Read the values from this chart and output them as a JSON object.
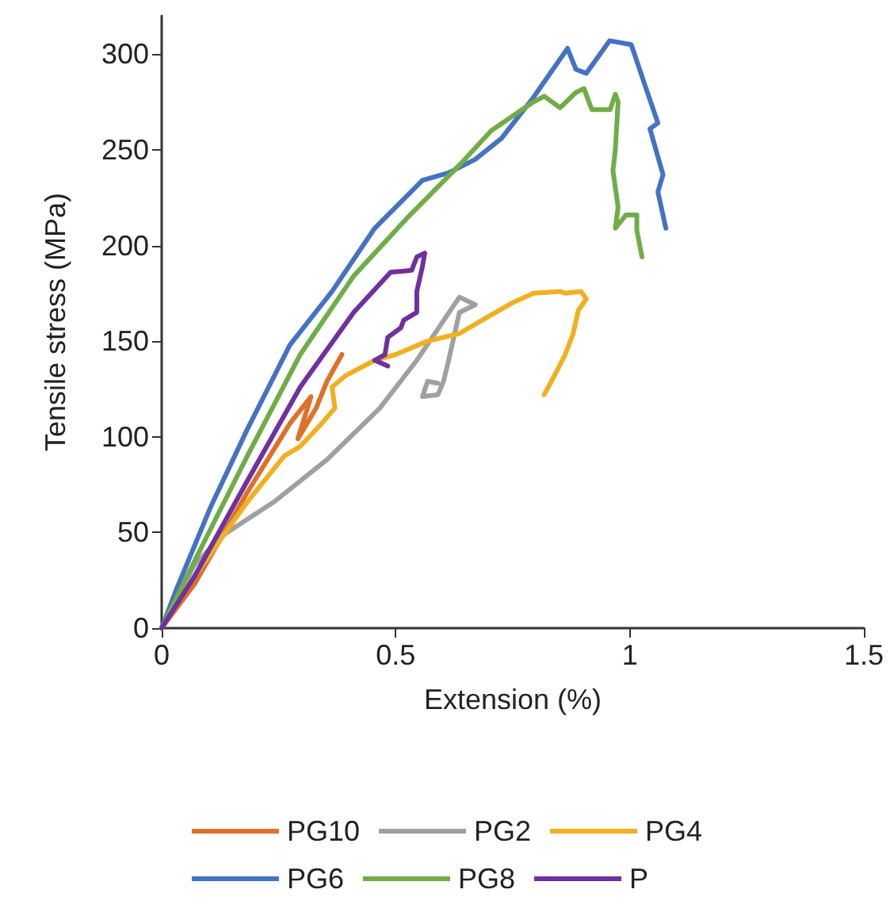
{
  "chart_data": {
    "type": "line",
    "xlabel": "Extension (%)",
    "ylabel": "Tensile stress (MPa)",
    "xlim": [
      0,
      1.5
    ],
    "xticks": [
      0,
      0.5,
      1,
      1.5
    ],
    "ylim": [
      0,
      320
    ],
    "yticks": [
      0,
      50,
      100,
      150,
      200,
      250,
      300
    ],
    "grid": false,
    "legend": "bottom",
    "marker": "none",
    "line_style": "solid",
    "series": [
      {
        "name": "PG10",
        "color": "#e07028",
        "x": [
          0,
          0.07,
          0.183,
          0.274,
          0.319,
          0.291,
          0.33,
          0.353,
          0.385
        ],
        "values": [
          0,
          23,
          71,
          107,
          121,
          99,
          115,
          129,
          143
        ]
      },
      {
        "name": "PG2",
        "color": "#a0a0a0",
        "x": [
          0,
          0.07,
          0.127,
          0.24,
          0.353,
          0.466,
          0.545,
          0.636,
          0.67,
          0.636,
          0.613,
          0.602,
          0.59,
          0.557,
          0.568,
          0.59
        ],
        "values": [
          0,
          33,
          48,
          66,
          88,
          115,
          140,
          173,
          169,
          165,
          140,
          129,
          122,
          121,
          129,
          128
        ]
      },
      {
        "name": "PG4",
        "color": "#f0b020",
        "x": [
          0,
          0.07,
          0.183,
          0.262,
          0.296,
          0.342,
          0.37,
          0.364,
          0.393,
          0.455,
          0.5,
          0.568,
          0.636,
          0.692,
          0.749,
          0.794,
          0.851,
          0.862,
          0.896,
          0.907,
          0.89,
          0.879,
          0.862,
          0.839,
          0.817
        ],
        "values": [
          0,
          27,
          66,
          90,
          95,
          107,
          115,
          126,
          132,
          140,
          143,
          150,
          154,
          162,
          170,
          175,
          176,
          175,
          176,
          172,
          166,
          154,
          143,
          132,
          122
        ]
      },
      {
        "name": "PG6",
        "color": "#4472c4",
        "x": [
          0,
          0.031,
          0.104,
          0.183,
          0.274,
          0.364,
          0.455,
          0.557,
          0.613,
          0.67,
          0.726,
          0.793,
          0.867,
          0.885,
          0.907,
          0.957,
          1.003,
          1.021,
          1.032,
          1.06,
          1.043,
          1.071,
          1.06,
          1.077
        ],
        "values": [
          0,
          20,
          63,
          104,
          148,
          176,
          209,
          234,
          238,
          245,
          256,
          277,
          303,
          292,
          290,
          307,
          305,
          292,
          284,
          264,
          261,
          237,
          228,
          209
        ]
      },
      {
        "name": "PG8",
        "color": "#70ad47",
        "x": [
          0,
          0.07,
          0.183,
          0.296,
          0.41,
          0.523,
          0.636,
          0.704,
          0.794,
          0.817,
          0.851,
          0.885,
          0.902,
          0.919,
          0.958,
          0.969,
          0.975,
          0.969,
          0.964,
          0.975,
          0.969,
          0.992,
          1.015,
          1.015,
          1.026
        ],
        "values": [
          0,
          35,
          90,
          143,
          184,
          214,
          242,
          260,
          275,
          278,
          272,
          280,
          282,
          271,
          271,
          279,
          275,
          250,
          239,
          220,
          209,
          216,
          216,
          208,
          194
        ]
      },
      {
        "name": "P",
        "color": "#7030a0",
        "x": [
          0,
          0.07,
          0.183,
          0.296,
          0.41,
          0.489,
          0.534,
          0.545,
          0.562,
          0.557,
          0.545,
          0.545,
          0.517,
          0.511,
          0.483,
          0.477,
          0.455,
          0.483
        ],
        "values": [
          0,
          27,
          77,
          126,
          165,
          186,
          187,
          194,
          196,
          189,
          176,
          165,
          161,
          157,
          152,
          143,
          140,
          137
        ]
      }
    ]
  }
}
